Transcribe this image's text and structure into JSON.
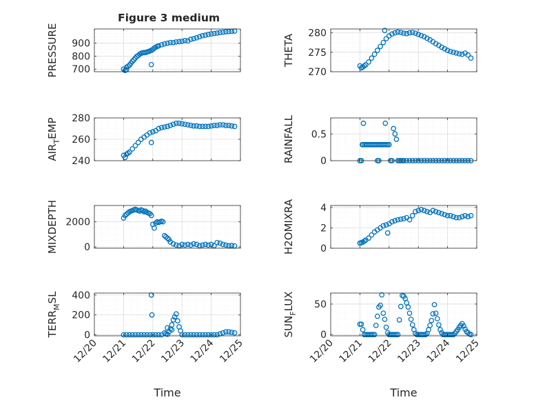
{
  "title": "Figure 3 medium",
  "colors": {
    "marker": "#0072BD",
    "axis": "#262626",
    "grid": "#dcdcdc",
    "minor_grid": "#ececec"
  },
  "chart_data": [
    {
      "type": "scatter",
      "ylabel": "PRESSURE",
      "ylim": [
        680,
        1010
      ],
      "yticks": [
        700,
        800,
        900
      ],
      "xticks_shown": false,
      "x": [
        21.0,
        21.05,
        21.1,
        21.15,
        21.2,
        21.25,
        21.3,
        21.35,
        21.4,
        21.45,
        21.5,
        21.55,
        21.6,
        21.65,
        21.7,
        21.75,
        21.8,
        21.85,
        21.9,
        21.95,
        22.0,
        22.05,
        22.1,
        22.15,
        22.2,
        22.3,
        22.4,
        22.5,
        22.6,
        22.7,
        22.8,
        22.9,
        23.0,
        23.1,
        23.2,
        23.3,
        23.4,
        23.5,
        23.6,
        23.7,
        23.8,
        23.9,
        24.0,
        24.1,
        24.2,
        24.3,
        24.4,
        24.5,
        24.6,
        24.7,
        24.8,
        21.1,
        21.95
      ],
      "y": [
        700,
        690,
        715,
        722,
        730,
        745,
        760,
        772,
        785,
        798,
        805,
        815,
        822,
        826,
        828,
        828,
        832,
        836,
        840,
        845,
        852,
        862,
        870,
        875,
        880,
        888,
        895,
        900,
        905,
        905,
        910,
        912,
        915,
        920,
        918,
        930,
        935,
        942,
        950,
        958,
        962,
        968,
        972,
        975,
        978,
        982,
        985,
        988,
        990,
        992,
        994,
        695,
        735
      ]
    },
    {
      "type": "scatter",
      "ylabel": "THETA",
      "ylim": [
        270,
        281
      ],
      "yticks": [
        270,
        275,
        280
      ],
      "xticks_shown": false,
      "x": [
        21.0,
        21.05,
        21.1,
        21.15,
        21.2,
        21.3,
        21.4,
        21.5,
        21.6,
        21.7,
        21.8,
        21.9,
        22.0,
        22.1,
        22.2,
        22.3,
        22.4,
        22.5,
        22.6,
        22.7,
        22.8,
        22.9,
        23.0,
        23.1,
        23.2,
        23.3,
        23.4,
        23.5,
        23.6,
        23.7,
        23.8,
        23.9,
        24.0,
        24.1,
        24.2,
        24.3,
        24.4,
        24.5,
        24.6,
        24.7,
        24.8,
        21.85
      ],
      "y": [
        271.5,
        271.0,
        271.2,
        271.5,
        271.8,
        272.5,
        273.5,
        274.5,
        275.5,
        276.5,
        277.5,
        278.5,
        279.2,
        279.7,
        280.0,
        280.2,
        280.1,
        279.9,
        279.8,
        280.0,
        280.1,
        279.9,
        279.6,
        279.3,
        279.0,
        278.6,
        278.2,
        277.7,
        277.2,
        276.8,
        276.3,
        275.9,
        275.5,
        275.2,
        275.0,
        274.8,
        274.6,
        274.5,
        274.8,
        274.3,
        273.5,
        280.6
      ]
    },
    {
      "type": "scatter",
      "ylabel": "AIR_TEMP",
      "ylim": [
        240,
        280
      ],
      "yticks": [
        240,
        260,
        280
      ],
      "xticks_shown": false,
      "x": [
        21.0,
        21.05,
        21.1,
        21.15,
        21.2,
        21.3,
        21.4,
        21.5,
        21.6,
        21.7,
        21.8,
        21.9,
        22.0,
        22.1,
        22.2,
        22.3,
        22.4,
        22.5,
        22.6,
        22.7,
        22.8,
        22.9,
        23.0,
        23.1,
        23.2,
        23.3,
        23.4,
        23.5,
        23.6,
        23.7,
        23.8,
        23.9,
        24.0,
        24.1,
        24.2,
        24.3,
        24.4,
        24.5,
        24.6,
        24.7,
        24.8,
        21.95
      ],
      "y": [
        245,
        243,
        246,
        247,
        248,
        251,
        254,
        257,
        260,
        262,
        264,
        266,
        267,
        268,
        270,
        271,
        271.5,
        272,
        273,
        274,
        275,
        275,
        274.5,
        274,
        273.5,
        273,
        272.5,
        272.5,
        272,
        272,
        272,
        272,
        272.5,
        273,
        273,
        273.5,
        273.5,
        273,
        273,
        272.5,
        272,
        257
      ]
    },
    {
      "type": "scatter",
      "ylabel": "RAINFALL",
      "ylim": [
        0,
        0.8
      ],
      "yticks": [
        0,
        0.5
      ],
      "xticks_shown": false,
      "x": [
        21.0,
        21.05,
        21.08,
        21.1,
        21.15,
        21.2,
        21.25,
        21.3,
        21.35,
        21.4,
        21.45,
        21.5,
        21.55,
        21.6,
        21.65,
        21.7,
        21.75,
        21.8,
        21.85,
        21.9,
        21.95,
        22.0,
        21.12,
        21.87,
        21.6,
        21.65,
        22.05,
        22.15,
        22.2,
        22.25,
        22.1,
        22.3,
        22.35,
        22.4,
        22.45,
        22.5,
        22.6,
        22.7,
        22.8,
        22.9,
        23.0,
        23.1,
        23.2,
        23.3,
        23.4,
        23.5,
        23.6,
        23.7,
        23.8,
        23.9,
        24.0,
        24.1,
        24.2,
        24.3,
        24.4,
        24.5,
        24.6,
        24.7,
        24.8
      ],
      "y": [
        0,
        0,
        0.3,
        0.3,
        0.3,
        0.3,
        0.3,
        0.3,
        0.3,
        0.3,
        0.3,
        0.3,
        0.3,
        0.3,
        0.3,
        0.3,
        0.3,
        0.3,
        0.3,
        0.3,
        0.3,
        0.3,
        0.7,
        0.7,
        0,
        0,
        0,
        0.6,
        0.5,
        0.4,
        0,
        0,
        0,
        0,
        0,
        0,
        0,
        0,
        0,
        0,
        0,
        0,
        0,
        0,
        0,
        0,
        0,
        0,
        0,
        0,
        0,
        0,
        0,
        0,
        0,
        0,
        0,
        0,
        0
      ]
    },
    {
      "type": "scatter",
      "ylabel": "MIXDEPTH",
      "ylim": [
        -100,
        3300
      ],
      "yticks": [
        0,
        2000
      ],
      "xticks_shown": false,
      "x": [
        21.0,
        21.05,
        21.1,
        21.15,
        21.2,
        21.25,
        21.3,
        21.35,
        21.4,
        21.45,
        21.5,
        21.55,
        21.6,
        21.65,
        21.7,
        21.75,
        21.8,
        21.85,
        21.9,
        21.95,
        22.0,
        22.05,
        22.1,
        22.15,
        22.2,
        22.25,
        22.3,
        22.35,
        22.4,
        22.45,
        22.5,
        22.55,
        22.6,
        22.7,
        22.8,
        22.9,
        23.0,
        23.1,
        23.2,
        23.3,
        23.4,
        23.5,
        23.6,
        23.7,
        23.8,
        23.9,
        24.0,
        24.1,
        24.2,
        24.3,
        24.4,
        24.5,
        24.6,
        24.7,
        24.8
      ],
      "y": [
        2300,
        2500,
        2600,
        2700,
        2800,
        2850,
        2900,
        2950,
        3000,
        2950,
        2900,
        2850,
        2950,
        2900,
        2800,
        2850,
        2750,
        2700,
        2650,
        2500,
        1800,
        1500,
        1900,
        2000,
        1950,
        2000,
        2050,
        2000,
        900,
        800,
        700,
        600,
        400,
        250,
        150,
        100,
        200,
        150,
        200,
        150,
        250,
        200,
        100,
        150,
        200,
        150,
        200,
        100,
        350,
        300,
        200,
        150,
        100,
        120,
        80
      ]
    },
    {
      "type": "scatter",
      "ylabel": "H2OMIXRA",
      "ylim": [
        0,
        4.2
      ],
      "yticks": [
        0,
        2,
        4
      ],
      "xticks_shown": false,
      "x": [
        21.0,
        21.05,
        21.1,
        21.15,
        21.2,
        21.3,
        21.4,
        21.5,
        21.6,
        21.7,
        21.8,
        21.9,
        22.0,
        22.1,
        22.2,
        22.3,
        22.4,
        22.5,
        22.6,
        22.7,
        22.8,
        22.9,
        23.0,
        23.1,
        23.2,
        23.3,
        23.4,
        23.5,
        23.6,
        23.7,
        23.8,
        23.9,
        24.0,
        24.1,
        24.2,
        24.3,
        24.4,
        24.5,
        24.6,
        24.7,
        24.8,
        21.95
      ],
      "y": [
        0.5,
        0.55,
        0.6,
        0.7,
        0.8,
        1.0,
        1.3,
        1.6,
        1.8,
        2.0,
        2.2,
        2.3,
        2.4,
        2.6,
        2.7,
        2.8,
        2.85,
        2.9,
        3.0,
        2.8,
        3.2,
        3.6,
        3.7,
        3.8,
        3.7,
        3.6,
        3.5,
        3.7,
        3.6,
        3.5,
        3.4,
        3.3,
        3.2,
        3.2,
        3.1,
        3.0,
        3.0,
        3.1,
        3.2,
        3.1,
        3.2,
        1.5
      ]
    },
    {
      "type": "scatter",
      "ylabel": "TERR_MSL",
      "ylim": [
        -10,
        420
      ],
      "yticks": [
        0,
        200,
        400
      ],
      "xticks": [
        "12/20",
        "12/21",
        "12/22",
        "12/23",
        "12/24",
        "12/25"
      ],
      "xlabel": "Time",
      "x": [
        21.0,
        21.1,
        21.2,
        21.3,
        21.4,
        21.5,
        21.6,
        21.7,
        21.8,
        21.9,
        22.0,
        22.1,
        22.2,
        22.3,
        22.4,
        22.45,
        22.5,
        22.55,
        22.6,
        22.65,
        22.7,
        22.75,
        22.8,
        22.85,
        22.9,
        22.95,
        23.0,
        23.1,
        23.2,
        23.3,
        23.4,
        23.5,
        23.6,
        23.7,
        23.8,
        23.9,
        24.0,
        24.1,
        24.2,
        24.3,
        24.4,
        24.5,
        24.6,
        24.7,
        24.8,
        21.95,
        21.97,
        22.5,
        22.65
      ],
      "y": [
        0,
        0,
        0,
        0,
        0,
        0,
        0,
        0,
        0,
        0,
        0,
        0,
        0,
        0,
        20,
        10,
        5,
        30,
        60,
        100,
        150,
        180,
        210,
        140,
        80,
        40,
        0,
        0,
        0,
        0,
        0,
        0,
        0,
        0,
        0,
        0,
        0,
        0,
        0,
        10,
        20,
        30,
        30,
        25,
        20,
        400,
        200,
        70,
        50
      ]
    },
    {
      "type": "scatter",
      "ylabel": "SUN_FLUX",
      "ylim": [
        -2,
        68
      ],
      "yticks": [
        0,
        50
      ],
      "xticks": [
        "12/20",
        "12/21",
        "12/22",
        "12/23",
        "12/24",
        "12/25"
      ],
      "xlabel": "Time",
      "x": [
        21.0,
        21.05,
        21.1,
        21.15,
        21.2,
        21.25,
        21.3,
        21.35,
        21.4,
        21.45,
        21.5,
        21.55,
        21.6,
        21.65,
        21.7,
        21.75,
        21.8,
        21.85,
        21.9,
        21.95,
        22.0,
        22.05,
        22.1,
        22.15,
        22.2,
        22.25,
        22.3,
        22.35,
        22.4,
        22.45,
        22.5,
        22.55,
        22.6,
        22.65,
        22.7,
        22.75,
        22.8,
        22.85,
        22.9,
        22.95,
        23.0,
        23.05,
        23.1,
        23.15,
        23.2,
        23.25,
        23.3,
        23.35,
        23.4,
        23.45,
        23.5,
        23.55,
        23.6,
        23.65,
        23.7,
        23.75,
        23.8,
        23.85,
        23.9,
        23.95,
        24.0,
        24.05,
        24.1,
        24.15,
        24.2,
        24.25,
        24.3,
        24.35,
        24.4,
        24.45,
        24.5,
        24.55,
        24.6,
        24.65,
        24.7,
        24.75,
        24.8
      ],
      "y": [
        17,
        17,
        8,
        0,
        0,
        0,
        0,
        0,
        0,
        0,
        0,
        15,
        30,
        45,
        48,
        65,
        35,
        25,
        12,
        3,
        0,
        0,
        0,
        0,
        0,
        0,
        0,
        24,
        46,
        64,
        63,
        59,
        52,
        45,
        35,
        25,
        16,
        8,
        2,
        0,
        0,
        0,
        0,
        0,
        0,
        0,
        2,
        8,
        15,
        23,
        34,
        49,
        35,
        26,
        16,
        8,
        3,
        0,
        0,
        0,
        0,
        0,
        0,
        0,
        0,
        2,
        5,
        8,
        12,
        15,
        18,
        14,
        9,
        5,
        3,
        1,
        0
      ]
    }
  ]
}
